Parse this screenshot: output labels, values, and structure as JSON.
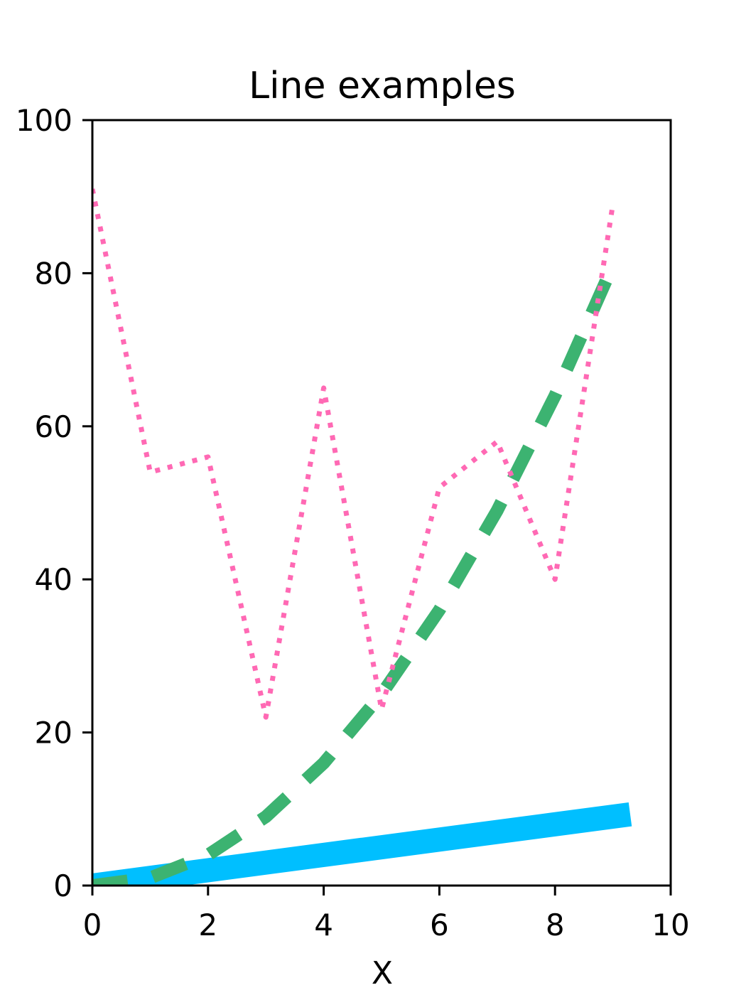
{
  "chart_data": {
    "type": "line",
    "title": "Line examples",
    "xlabel": "X",
    "ylabel": "",
    "xlim": [
      0,
      10
    ],
    "ylim": [
      0,
      100
    ],
    "xticks": [
      0,
      2,
      4,
      6,
      8,
      10
    ],
    "yticks": [
      0,
      20,
      40,
      60,
      80,
      100
    ],
    "grid": false,
    "x": [
      0,
      1,
      2,
      3,
      4,
      5,
      6,
      7,
      8,
      9
    ],
    "series": [
      {
        "style": "solid-thick",
        "color": "#00BFFF",
        "x": [
          0,
          9.3
        ],
        "values": [
          0,
          9.3
        ]
      },
      {
        "style": "dashed",
        "color": "#3CB371",
        "values": [
          0,
          1,
          4,
          9,
          16,
          25,
          36,
          49,
          64,
          81
        ]
      },
      {
        "style": "dotted",
        "color": "#FF69B4",
        "values": [
          91,
          54,
          56,
          22,
          65,
          23,
          52,
          58,
          40,
          89
        ]
      }
    ]
  }
}
